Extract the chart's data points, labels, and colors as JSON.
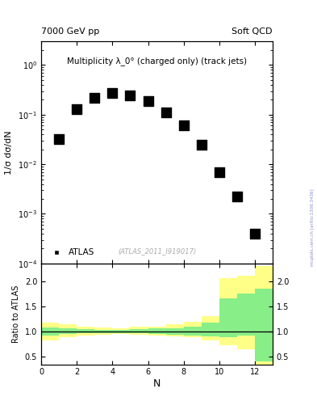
{
  "title_left": "7000 GeV pp",
  "title_right": "Soft QCD",
  "inner_title": "Multiplicity λ_0° (charged only) (track jets)",
  "watermark": "(ATLAS_2011_I919017)",
  "right_label": "mcplots.cern.ch [arXiv:1306.3436]",
  "ylabel_main": "1/σ dσ/dN",
  "ylabel_ratio": "Ratio to ATLAS",
  "xlabel": "N",
  "legend_label": "ATLAS",
  "data_x": [
    1,
    2,
    3,
    4,
    5,
    6,
    7,
    8,
    9,
    10,
    11,
    12
  ],
  "data_y": [
    0.032,
    0.13,
    0.22,
    0.27,
    0.24,
    0.19,
    0.11,
    0.06,
    0.025,
    0.007,
    0.0022,
    0.0004
  ],
  "ylim_main": [
    0.0001,
    3
  ],
  "xlim": [
    0,
    13
  ],
  "ratio_bins": [
    0,
    1,
    2,
    3,
    4,
    5,
    6,
    7,
    8,
    9,
    10,
    11,
    12,
    13
  ],
  "ratio_yellow_lo": [
    0.82,
    0.88,
    0.92,
    0.94,
    0.95,
    0.93,
    0.92,
    0.9,
    0.88,
    0.83,
    0.72,
    0.65,
    0.35
  ],
  "ratio_yellow_hi": [
    1.18,
    1.14,
    1.1,
    1.08,
    1.07,
    1.09,
    1.1,
    1.15,
    1.2,
    1.3,
    2.05,
    2.1,
    2.3
  ],
  "ratio_green_lo": [
    0.92,
    0.95,
    0.96,
    0.97,
    0.97,
    0.96,
    0.95,
    0.94,
    0.92,
    0.9,
    0.88,
    0.92,
    0.4
  ],
  "ratio_green_hi": [
    1.08,
    1.06,
    1.05,
    1.04,
    1.04,
    1.05,
    1.06,
    1.07,
    1.1,
    1.18,
    1.65,
    1.75,
    1.85
  ],
  "ratio_ylim": [
    0.35,
    2.35
  ],
  "ratio_yticks": [
    0.5,
    1.0,
    1.5,
    2.0
  ],
  "color_green": "#88EE88",
  "color_yellow": "#FFFF88",
  "data_color": "#000000",
  "marker": "s",
  "marker_size": 5,
  "bg_color": "#ffffff"
}
